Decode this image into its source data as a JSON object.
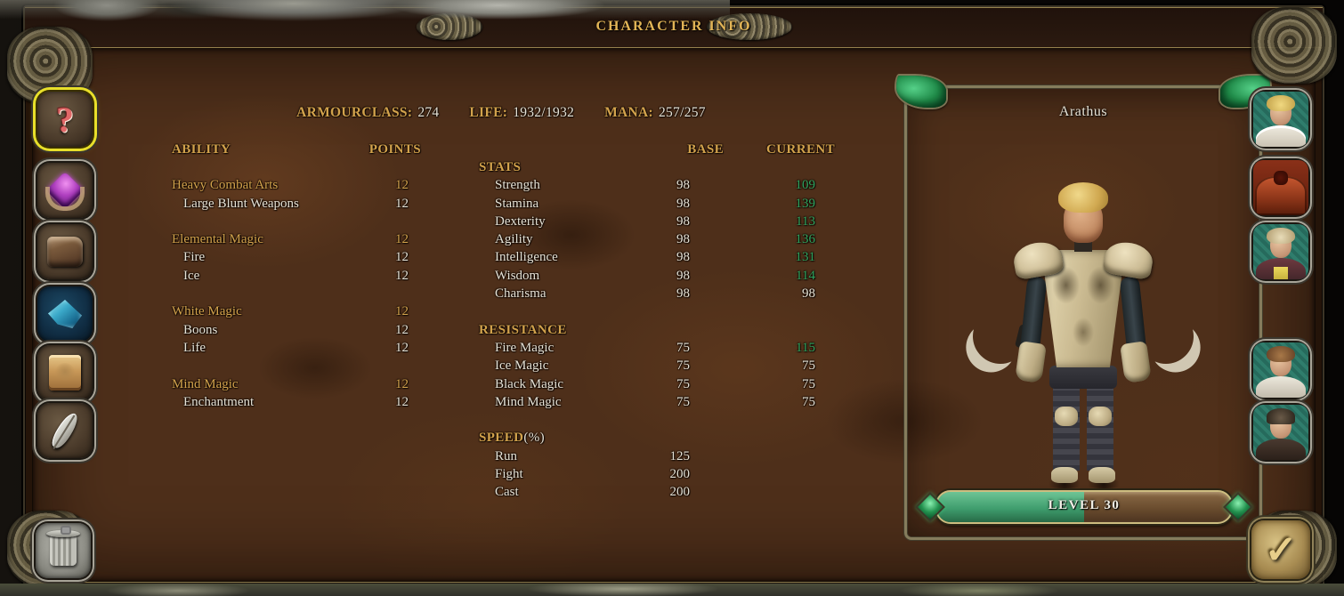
{
  "colors": {
    "gold": "#d2a24c",
    "gold_bright": "#e2b456",
    "text_white": "#e6e2d6",
    "boost_green": "#2fa45f",
    "leather": "#4e2f1a",
    "title_line": "#96824e",
    "yellow_active": "#e8df2a",
    "level_green": "#3f9e6e",
    "level_brown": "#7a5a38"
  },
  "title": "CHARACTER INFO",
  "summary": [
    {
      "label": "ARMOURCLASS:",
      "value": "274"
    },
    {
      "label": "LIFE:",
      "value": "1932/1932"
    },
    {
      "label": "MANA:",
      "value": "257/257"
    }
  ],
  "ability": {
    "col_ability": "ABILITY",
    "col_points": "POINTS",
    "rows": [
      {
        "label": "Heavy Combat Arts",
        "points": "12"
      },
      {
        "label": "Large Blunt Weapons",
        "points": "12"
      },
      {
        "label": "Elemental Magic",
        "points": "12"
      },
      {
        "label": "Fire",
        "points": "12"
      },
      {
        "label": "Ice",
        "points": "12"
      },
      {
        "label": "White Magic",
        "points": "12"
      },
      {
        "label": "Boons",
        "points": "12"
      },
      {
        "label": "Life",
        "points": "12"
      },
      {
        "label": "Mind Magic",
        "points": "12"
      },
      {
        "label": "Enchantment",
        "points": "12"
      }
    ]
  },
  "stats": {
    "col_base": "BASE",
    "col_current": "CURRENT",
    "title_stats": "STATS",
    "title_resistance": "RESISTANCE",
    "title_speed": "SPEED",
    "title_speed_suffix": "(%)",
    "rows": [
      {
        "label": "Strength",
        "base": "98",
        "current": "109"
      },
      {
        "label": "Stamina",
        "base": "98",
        "current": "139"
      },
      {
        "label": "Dexterity",
        "base": "98",
        "current": "113"
      },
      {
        "label": "Agility",
        "base": "98",
        "current": "136"
      },
      {
        "label": "Intelligence",
        "base": "98",
        "current": "131"
      },
      {
        "label": "Wisdom",
        "base": "98",
        "current": "114"
      },
      {
        "label": "Charisma",
        "base": "98",
        "current": "98"
      },
      {
        "label": "Fire Magic",
        "base": "75",
        "current": "115"
      },
      {
        "label": "Ice Magic",
        "base": "75",
        "current": "75"
      },
      {
        "label": "Black Magic",
        "base": "75",
        "current": "75"
      },
      {
        "label": "Mind Magic",
        "base": "75",
        "current": "75"
      },
      {
        "label": "Run",
        "base": "125",
        "current": ""
      },
      {
        "label": "Fight",
        "base": "200",
        "current": ""
      },
      {
        "label": "Cast",
        "base": "200",
        "current": ""
      }
    ]
  },
  "character": {
    "name": "Arathus",
    "level_label": "LEVEL 30",
    "level_progress_pct": 50
  },
  "icons": {
    "question_glyph": "?",
    "check_glyph": "✓"
  }
}
